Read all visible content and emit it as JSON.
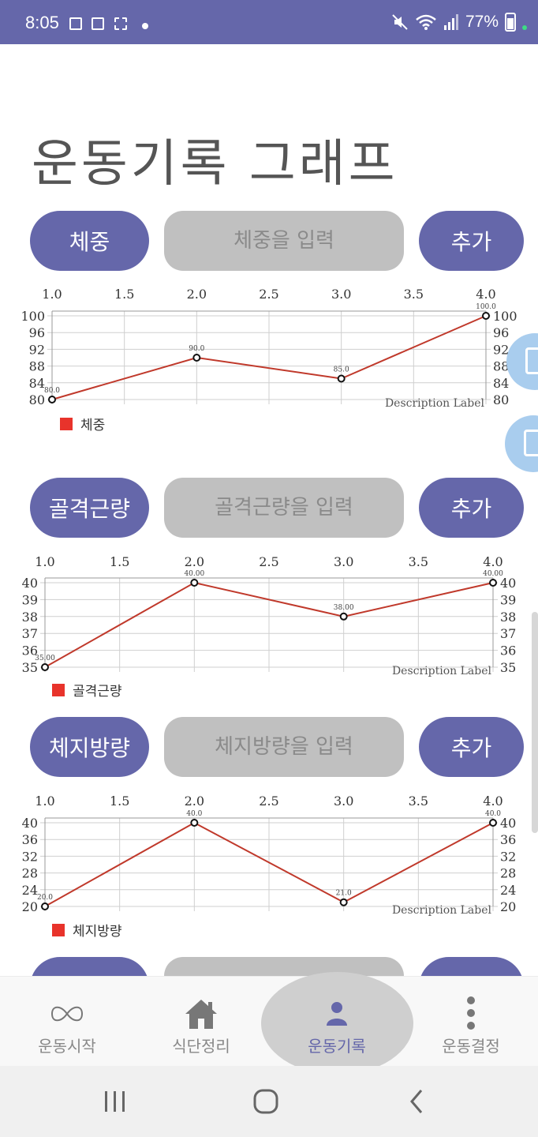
{
  "status_bar": {
    "time": "8:05",
    "battery": "77%"
  },
  "page": {
    "title": "운동기록 그래프"
  },
  "sections": [
    {
      "label_button": "체중",
      "input_placeholder": "체중을 입력",
      "add_button": "추가",
      "legend": "체중"
    },
    {
      "label_button": "골격근량",
      "input_placeholder": "골격근량을 입력",
      "add_button": "추가",
      "legend": "골격근량"
    },
    {
      "label_button": "체지방량",
      "input_placeholder": "체지방량을 입력",
      "add_button": "추가",
      "legend": "체지방량"
    }
  ],
  "chart_data": [
    {
      "type": "line",
      "x": [
        1.0,
        2.0,
        3.0,
        4.0
      ],
      "series": [
        {
          "name": "체중",
          "values": [
            80,
            90,
            85,
            100
          ]
        }
      ],
      "point_labels": [
        "80.0",
        "90.0",
        "85.0",
        "100.0"
      ],
      "x_ticks": [
        "1.0",
        "1.5",
        "2.0",
        "2.5",
        "3.0",
        "3.5",
        "4.0"
      ],
      "y_ticks": [
        "80",
        "84",
        "88",
        "92",
        "96",
        "100"
      ],
      "ylim": [
        80,
        100
      ],
      "xlim": [
        1,
        4
      ],
      "description": "Description Label",
      "line_color": "#c0392b",
      "grid": true
    },
    {
      "type": "line",
      "x": [
        1.0,
        2.0,
        3.0,
        4.0
      ],
      "series": [
        {
          "name": "골격근량",
          "values": [
            35,
            40,
            38,
            40
          ]
        }
      ],
      "point_labels": [
        "35.00",
        "40.00",
        "38.00",
        "40.00"
      ],
      "x_ticks": [
        "1.0",
        "1.5",
        "2.0",
        "2.5",
        "3.0",
        "3.5",
        "4.0"
      ],
      "y_ticks": [
        "35",
        "36",
        "37",
        "38",
        "39",
        "40"
      ],
      "ylim": [
        35,
        40
      ],
      "xlim": [
        1,
        4
      ],
      "description": "Description Label",
      "line_color": "#c0392b",
      "grid": true
    },
    {
      "type": "line",
      "x": [
        1.0,
        2.0,
        3.0,
        4.0
      ],
      "series": [
        {
          "name": "체지방량",
          "values": [
            20,
            40,
            21,
            40
          ]
        }
      ],
      "point_labels": [
        "20.0",
        "40.0",
        "21.0",
        "40.0"
      ],
      "x_ticks": [
        "1.0",
        "1.5",
        "2.0",
        "2.5",
        "3.0",
        "3.5",
        "4.0"
      ],
      "y_ticks": [
        "20",
        "24",
        "28",
        "32",
        "36",
        "40"
      ],
      "ylim": [
        20,
        40
      ],
      "xlim": [
        1,
        4
      ],
      "description": "Description Label",
      "line_color": "#c0392b",
      "grid": true
    }
  ],
  "bottom_nav": {
    "items": [
      {
        "label": "운동시작",
        "icon": "infinity-icon"
      },
      {
        "label": "식단정리",
        "icon": "home-icon"
      },
      {
        "label": "운동기록",
        "icon": "person-icon"
      },
      {
        "label": "운동결정",
        "icon": "more-vertical-icon"
      }
    ],
    "active_index": 2
  },
  "colors": {
    "accent": "#6567aa",
    "input_bg": "#c0c0c0",
    "legend": "#e8332b"
  }
}
